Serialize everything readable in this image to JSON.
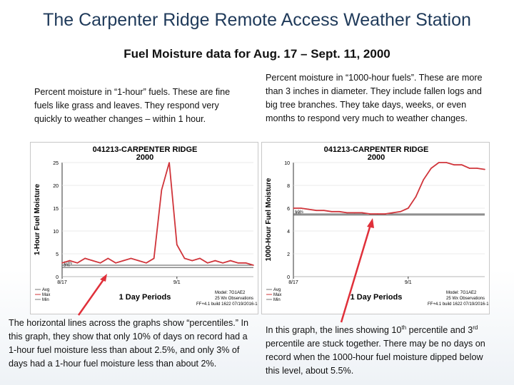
{
  "header": {
    "title": "The Carpenter Ridge Remote Access Weather Station",
    "subtitle": "Fuel Moisture data for Aug. 17 – Sept. 11, 2000"
  },
  "text": {
    "one_hour_desc": "Percent moisture in “1-hour” fuels. These are fine fuels like grass and leaves. They respond very quickly to weather changes – within 1 hour.",
    "thousand_hour_desc": "Percent moisture in “1000-hour fuels”. These are more than 3 inches in diameter. They include fallen logs and big tree branches. They take days, weeks, or even months to respond very much to weather changes.",
    "horizontal_lines_note": "The horizontal lines across the graphs show “percentiles.” In this graph, they show that only 10% of days on record had a 1-hour fuel moisture less than about 2.5%, and only 3% of days had a 1-hour fuel moisture less than about 2%.",
    "percentile_note_a": "In this graph, the lines showing 10",
    "percentile_note_sup1": "th",
    "percentile_note_b": " percentile and 3",
    "percentile_note_sup2": "rd",
    "percentile_note_c": " percentile are stuck together. There may be no days on record when the 1000-hour fuel moisture dipped below this level, about 5.5%."
  },
  "colors": {
    "series": "#d0343a",
    "percentile_line": "#555555",
    "arrow": "#e0303a",
    "title": "#1f3a5a"
  },
  "chart_data": [
    {
      "type": "line",
      "title": "041213-CARPENTER RIDGE",
      "subtitle": "2000",
      "ylabel": "1-Hour Fuel Moisture",
      "xlabel": "1 Day Periods",
      "ylim": [
        0,
        25
      ],
      "yticks": [
        0,
        5,
        10,
        15,
        20,
        25
      ],
      "xticks": [
        {
          "x": 0,
          "label": "8/17"
        },
        {
          "x": 15,
          "label": "9/1"
        }
      ],
      "xlim": [
        0,
        25
      ],
      "legend": [
        "Avg",
        "Max",
        "Min"
      ],
      "percentiles": [
        {
          "label": "10%",
          "value": 2.5
        },
        {
          "label": "3%",
          "value": 2.0
        }
      ],
      "series": [
        {
          "name": "Max",
          "x": [
            0,
            1,
            2,
            3,
            4,
            5,
            6,
            7,
            8,
            9,
            10,
            11,
            12,
            13,
            14,
            15,
            16,
            17,
            18,
            19,
            20,
            21,
            22,
            23,
            24,
            25
          ],
          "values": [
            3,
            3.5,
            3,
            4,
            3.5,
            3,
            4,
            3,
            3.5,
            4,
            3.5,
            3,
            4,
            19,
            25,
            7,
            4,
            3.5,
            4,
            3,
            3.5,
            3,
            3.5,
            3,
            3,
            2.5
          ]
        }
      ],
      "footer": [
        "Model: 7G1AE2",
        "25 Wx Observations",
        "FF+4.1 build 1622 07/19/2016-16:14"
      ]
    },
    {
      "type": "line",
      "title": "041213-CARPENTER RIDGE",
      "subtitle": "2000",
      "ylabel": "1000-Hour Fuel Moisture",
      "xlabel": "1 Day Periods",
      "ylim": [
        0,
        10
      ],
      "yticks": [
        0,
        2,
        4,
        6,
        8,
        10
      ],
      "xticks": [
        {
          "x": 0,
          "label": "8/17"
        },
        {
          "x": 15,
          "label": "9/1"
        }
      ],
      "xlim": [
        0,
        25
      ],
      "legend": [
        "Avg",
        "Max",
        "Min"
      ],
      "percentiles": [
        {
          "label": "10%",
          "value": 5.5
        },
        {
          "label": "3%",
          "value": 5.4
        }
      ],
      "series": [
        {
          "name": "Max",
          "x": [
            0,
            1,
            2,
            3,
            4,
            5,
            6,
            7,
            8,
            9,
            10,
            11,
            12,
            13,
            14,
            15,
            16,
            17,
            18,
            19,
            20,
            21,
            22,
            23,
            24,
            25
          ],
          "values": [
            6,
            6,
            5.9,
            5.8,
            5.8,
            5.7,
            5.7,
            5.6,
            5.6,
            5.6,
            5.5,
            5.5,
            5.5,
            5.6,
            5.7,
            6,
            7,
            8.5,
            9.5,
            10,
            10,
            9.8,
            9.8,
            9.5,
            9.5,
            9.4
          ]
        }
      ],
      "footer": [
        "Model: 7G1AE2",
        "25 Wx Observations",
        "FF+4.1 build 1622 07/19/2016-16:14"
      ]
    }
  ]
}
